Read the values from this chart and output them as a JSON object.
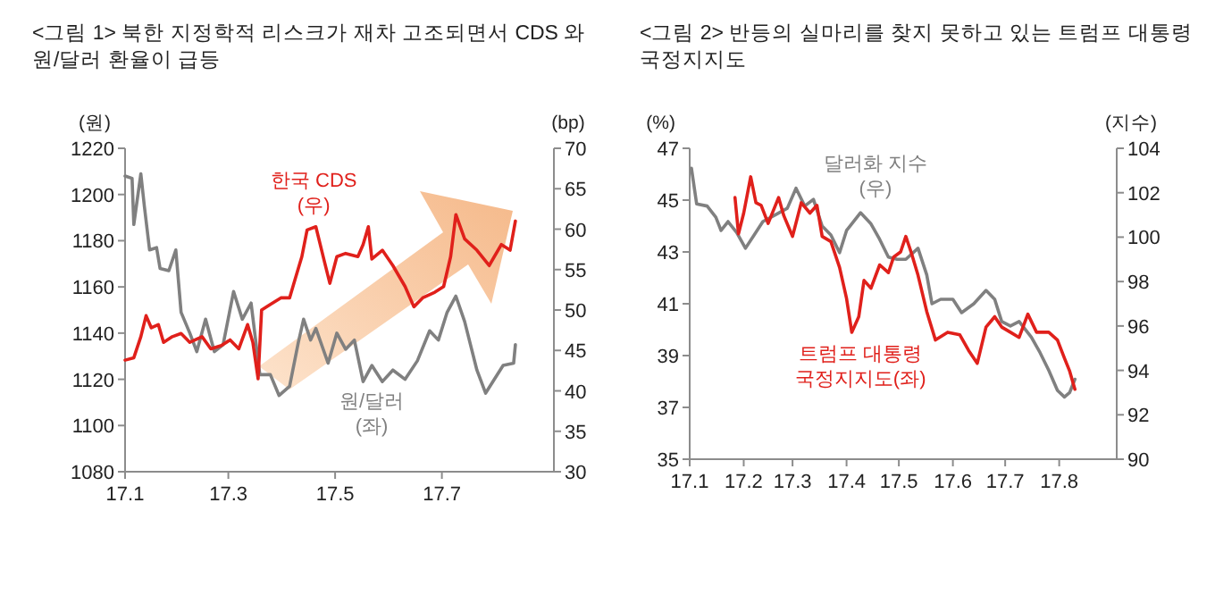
{
  "chart_data": [
    {
      "type": "line",
      "title": "<그림 1>  북한 지정학적 리스크가 재차 고조되면서 CDS 와 원/달러 환율이 급등",
      "ylabel": "(원)",
      "y2label": "(bp)",
      "xlim": [
        "--01-01",
        "--09-03"
      ],
      "xticks": [
        {
          "value": "--01-01",
          "label": "17.1"
        },
        {
          "value": "--03-01",
          "label": "17.3"
        },
        {
          "value": "--05-01",
          "label": "17.5"
        },
        {
          "value": "--07-01",
          "label": "17.7"
        }
      ],
      "ylim": [
        1080,
        1220
      ],
      "yticks": [
        1080,
        1100,
        1120,
        1140,
        1160,
        1180,
        1200,
        1220
      ],
      "y2lim": [
        30,
        70
      ],
      "y2ticks": [
        30,
        35,
        40,
        45,
        50,
        55,
        60,
        65,
        70
      ],
      "series": [
        {
          "name": "원/달러\n(좌)",
          "color": "#808080",
          "x": [
            "--01-01",
            "--01-05",
            "--01-06",
            "--01-10",
            "--01-12",
            "--01-15",
            "--01-19",
            "--01-21",
            "--01-26",
            "--01-30",
            "--02-02",
            "--02-07",
            "--02-11",
            "--02-16",
            "--02-21",
            "--02-26",
            "--03-04",
            "--03-09",
            "--03-14",
            "--03-19",
            "--03-25",
            "--03-30",
            "--04-05",
            "--04-10",
            "--04-13",
            "--04-17",
            "--04-20",
            "--04-27",
            "--05-02",
            "--05-07",
            "--05-12",
            "--05-17",
            "--05-22",
            "--05-28",
            "--06-03",
            "--06-10",
            "--06-17",
            "--06-24",
            "--06-29",
            "--07-04",
            "--07-09",
            "--07-14",
            "--07-21",
            "--07-26",
            "--07-31",
            "--08-05",
            "--08-11",
            "--08-12"
          ],
          "values": [
            1208,
            1207,
            1187,
            1209,
            1195,
            1176,
            1177,
            1168,
            1167,
            1176,
            1149,
            1140,
            1132,
            1146,
            1132,
            1135,
            1158,
            1146,
            1153,
            1122,
            1122,
            1113,
            1117,
            1136,
            1146,
            1137,
            1142,
            1127,
            1140,
            1133,
            1137,
            1119,
            1126,
            1119,
            1124,
            1120,
            1128,
            1141,
            1137,
            1149,
            1156,
            1145,
            1124,
            1114,
            1120,
            1126,
            1127,
            1135
          ]
        },
        {
          "name": "한국 CDS\n(우)",
          "color": "#e0201b",
          "axis": "y2",
          "x": [
            "--01-01",
            "--01-06",
            "--01-10",
            "--01-13",
            "--01-16",
            "--01-20",
            "--01-23",
            "--01-28",
            "--02-02",
            "--02-07",
            "--02-14",
            "--02-19",
            "--02-25",
            "--03-02",
            "--03-07",
            "--03-12",
            "--03-15",
            "--03-18",
            "--03-20",
            "--03-25",
            "--03-31",
            "--04-05",
            "--04-08",
            "--04-12",
            "--04-15",
            "--04-20",
            "--04-25",
            "--04-28",
            "--05-02",
            "--05-07",
            "--05-14",
            "--05-17",
            "--05-20",
            "--05-22",
            "--05-28",
            "--06-03",
            "--06-10",
            "--06-15",
            "--06-20",
            "--06-27",
            "--07-02",
            "--07-06",
            "--07-09",
            "--07-14",
            "--07-21",
            "--07-28",
            "--08-04",
            "--08-09",
            "--08-12"
          ],
          "values": [
            43.8,
            44.1,
            46.7,
            49.3,
            47.8,
            48.2,
            46.0,
            46.7,
            47.1,
            46.0,
            46.7,
            45.2,
            45.6,
            46.3,
            45.2,
            48.2,
            46.0,
            41.5,
            50.0,
            50.7,
            51.5,
            51.5,
            53.7,
            56.6,
            59.9,
            60.3,
            55.9,
            53.3,
            56.6,
            57.0,
            56.6,
            58.1,
            60.3,
            56.3,
            57.4,
            55.5,
            52.9,
            50.4,
            51.5,
            52.2,
            52.9,
            56.6,
            61.8,
            58.8,
            57.4,
            55.5,
            58.1,
            57.4,
            61.0
          ]
        }
      ]
    },
    {
      "type": "line",
      "title": "<그림 2>  반등의 실마리를 찾지 못하고 있는 트럼프 대통령 국정지지도",
      "ylabel": "(%)",
      "y2label": "(지수)",
      "xlim": [
        "--01-01",
        "--09-03"
      ],
      "xticks": [
        {
          "value": "--01-01",
          "label": "17.1"
        },
        {
          "value": "--02-01",
          "label": "17.2"
        },
        {
          "value": "--03-01",
          "label": "17.3"
        },
        {
          "value": "--04-01",
          "label": "17.4"
        },
        {
          "value": "--05-01",
          "label": "17.5"
        },
        {
          "value": "--06-01",
          "label": "17.6"
        },
        {
          "value": "--07-01",
          "label": "17.7"
        },
        {
          "value": "--08-01",
          "label": "17.8"
        }
      ],
      "ylim": [
        35,
        47
      ],
      "yticks": [
        35,
        37,
        39,
        41,
        43,
        45,
        47
      ],
      "y2lim": [
        90,
        104
      ],
      "y2ticks": [
        90,
        92,
        94,
        96,
        98,
        100,
        102,
        104
      ],
      "series": [
        {
          "name": "달러화 지수\n(우)",
          "color": "#808080",
          "axis": "y2",
          "x": [
            "--01-02",
            "--01-05",
            "--01-11",
            "--01-16",
            "--01-19",
            "--01-23",
            "--01-28",
            "--02-02",
            "--02-07",
            "--02-12",
            "--02-19",
            "--02-26",
            "--03-03",
            "--03-08",
            "--03-13",
            "--03-18",
            "--03-23",
            "--03-28",
            "--04-01",
            "--04-09",
            "--04-15",
            "--04-20",
            "--04-25",
            "--04-30",
            "--05-05",
            "--05-12",
            "--05-17",
            "--05-20",
            "--05-25",
            "--06-01",
            "--06-06",
            "--06-13",
            "--06-20",
            "--06-25",
            "--06-29",
            "--07-04",
            "--07-09",
            "--07-16",
            "--07-21",
            "--07-26",
            "--07-31",
            "--08-04",
            "--08-07",
            "--08-10"
          ],
          "values": [
            103.1,
            101.5,
            101.4,
            100.9,
            100.3,
            100.7,
            100.2,
            99.5,
            100.1,
            100.7,
            101.0,
            101.3,
            102.2,
            101.4,
            101.7,
            100.5,
            100.1,
            99.3,
            100.3,
            101.1,
            100.6,
            99.9,
            99.1,
            99.0,
            99.0,
            99.5,
            98.3,
            97.0,
            97.2,
            97.2,
            96.6,
            97.0,
            97.6,
            97.2,
            96.2,
            96.0,
            96.2,
            95.5,
            94.8,
            94.0,
            93.1,
            92.8,
            93.0,
            93.6
          ]
        },
        {
          "name": "트럼프 대통령\n국정지지도(좌)",
          "color": "#e0201b",
          "x": [
            "--01-27",
            "--01-29",
            "--02-01",
            "--02-05",
            "--02-08",
            "--02-11",
            "--02-15",
            "--02-21",
            "--02-24",
            "--03-01",
            "--03-06",
            "--03-11",
            "--03-15",
            "--03-18",
            "--03-23",
            "--03-28",
            "--04-01",
            "--04-04",
            "--04-08",
            "--04-11",
            "--04-15",
            "--04-20",
            "--04-25",
            "--04-28",
            "--05-02",
            "--05-05",
            "--05-08",
            "--05-12",
            "--05-17",
            "--05-22",
            "--05-29",
            "--06-05",
            "--06-10",
            "--06-15",
            "--06-20",
            "--06-25",
            "--06-29",
            "--07-04",
            "--07-09",
            "--07-14",
            "--07-19",
            "--07-26",
            "--07-31",
            "--08-04",
            "--08-07",
            "--08-10"
          ],
          "values": [
            45.1,
            43.7,
            44.5,
            45.9,
            44.9,
            44.8,
            44.1,
            45.1,
            44.4,
            43.6,
            44.9,
            44.5,
            44.8,
            43.6,
            43.4,
            42.4,
            41.2,
            39.9,
            40.5,
            41.9,
            41.6,
            42.5,
            42.2,
            42.8,
            43.0,
            43.6,
            43.0,
            42.1,
            40.7,
            39.6,
            39.9,
            39.8,
            39.2,
            38.7,
            40.1,
            40.5,
            40.1,
            39.9,
            39.7,
            40.6,
            39.9,
            39.9,
            39.6,
            38.9,
            38.4,
            37.7
          ]
        }
      ]
    }
  ]
}
